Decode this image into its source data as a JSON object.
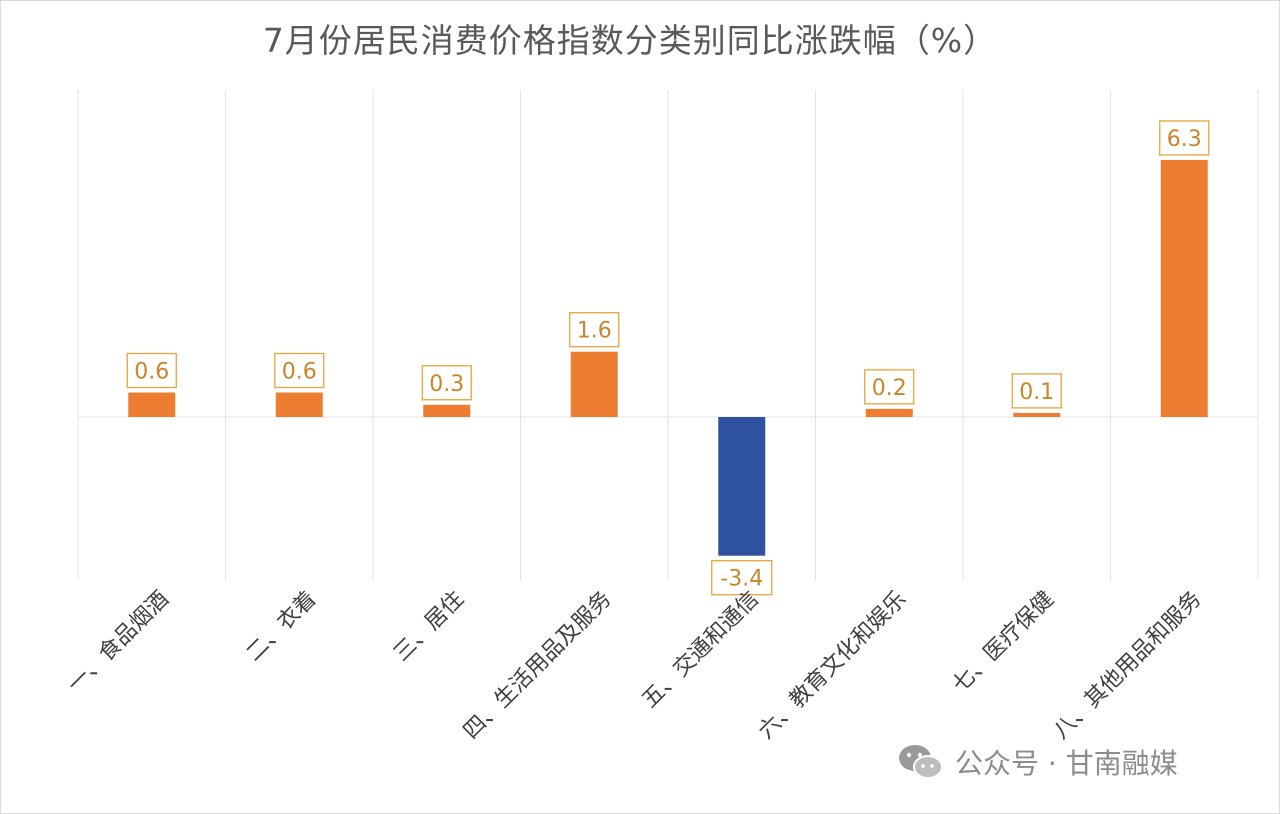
{
  "chart_data": {
    "type": "bar",
    "title": "7月份居民消费价格指数分类别同比涨跌幅（%）",
    "categories": [
      "一、食品烟酒",
      "二、衣着",
      "三、居住",
      "四、生活用品及服务",
      "五、交通和通信",
      "六、教育文化和娱乐",
      "七、医疗保健",
      "八、其他用品和服务"
    ],
    "values": [
      0.6,
      0.6,
      0.3,
      1.6,
      -3.4,
      0.2,
      0.1,
      6.3
    ],
    "data_labels": [
      "0.6",
      "0.6",
      "0.3",
      "1.6",
      "-3.4",
      "0.2",
      "0.1",
      "6.3"
    ],
    "ylim": [
      -4.0,
      8.0
    ],
    "colors": {
      "positive": "#ED7D31",
      "negative": "#2F52A0",
      "label_border": "#E8A33A",
      "label_text": "#C9862A"
    },
    "grid": "vertical category separators",
    "legend": "none"
  },
  "watermark": {
    "icon": "wechat-icon",
    "text": "公众号 · 甘南融媒"
  }
}
